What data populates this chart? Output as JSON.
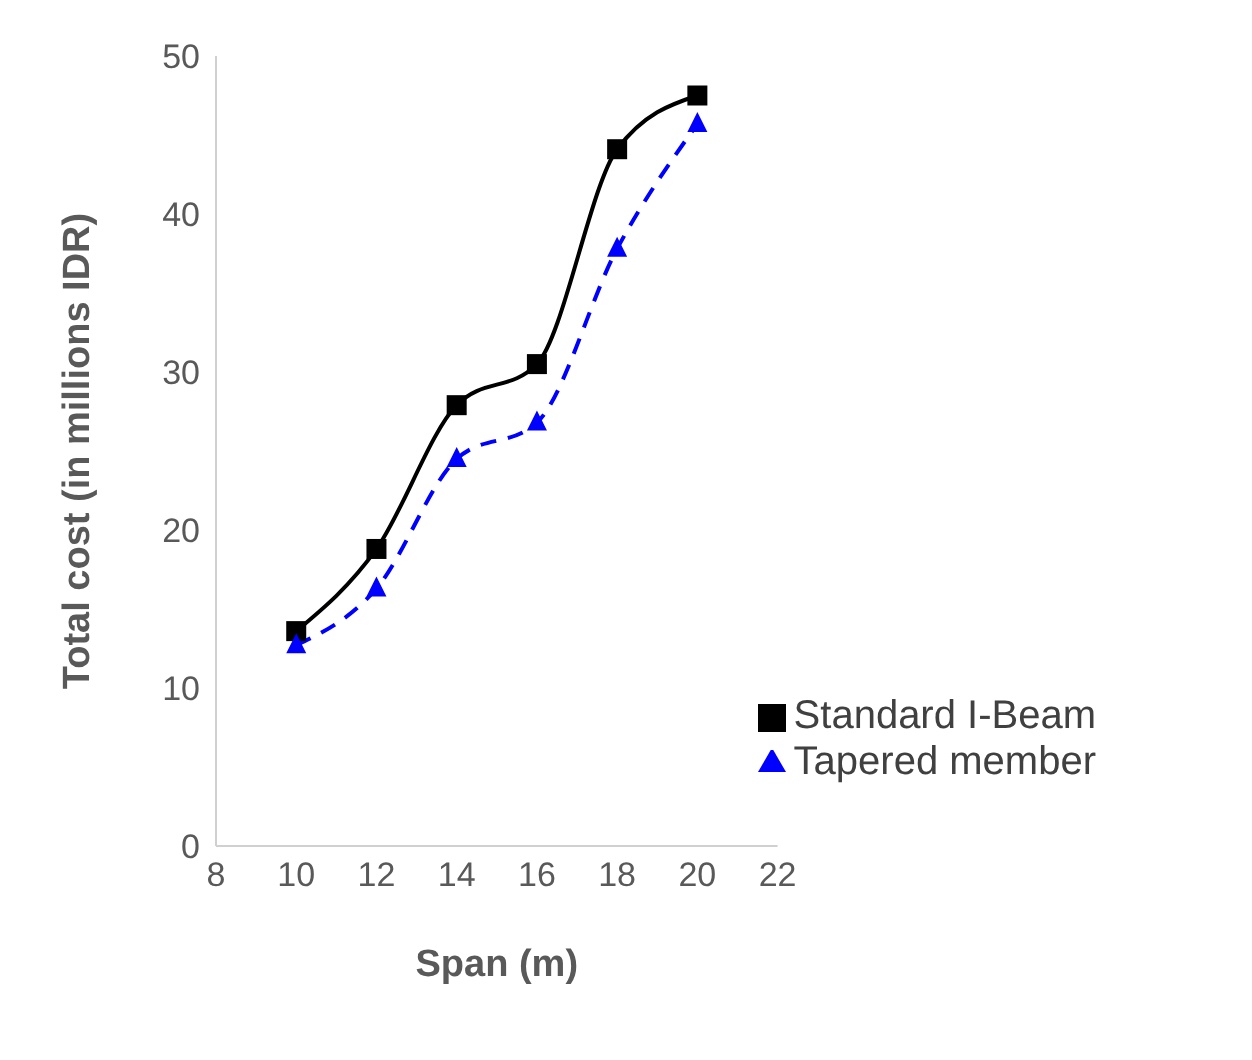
{
  "chart_data": {
    "type": "line",
    "xlabel": "Span (m)",
    "ylabel": "Total cost (in millions IDR)",
    "x": [
      10,
      12,
      14,
      16,
      18,
      20
    ],
    "series": [
      {
        "name": "Standard I-Beam",
        "color": "#000000",
        "values": [
          13.6,
          18.8,
          27.9,
          30.5,
          44.1,
          47.5
        ],
        "marker": "square",
        "line_style": "solid"
      },
      {
        "name": "Tapered member",
        "color": "#0000ff",
        "values": [
          12.7,
          16.3,
          24.5,
          26.8,
          37.8,
          45.7
        ],
        "marker": "triangle",
        "line_style": "dashed"
      }
    ],
    "xlim": [
      8,
      22
    ],
    "xticks": [
      8,
      10,
      12,
      14,
      16,
      18,
      20,
      22
    ],
    "ylim": [
      0,
      50
    ],
    "yticks": [
      0,
      10,
      20,
      30,
      40,
      50
    ],
    "grid": false,
    "legend": "bottom right"
  }
}
